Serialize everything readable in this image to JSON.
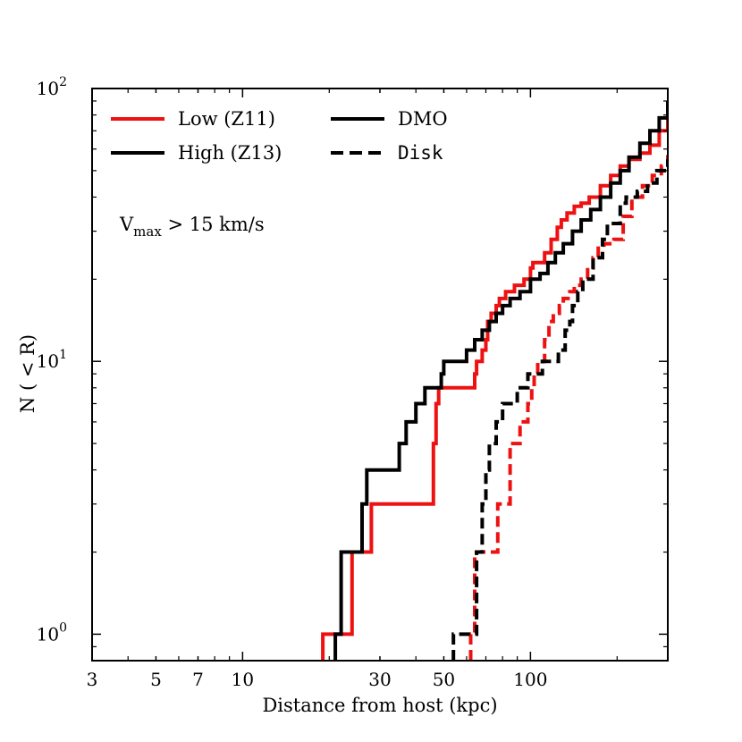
{
  "chart_data": {
    "type": "line",
    "step": true,
    "xscale": "log",
    "yscale": "log",
    "xlim": [
      3,
      300
    ],
    "ylim": [
      0.8,
      100
    ],
    "xlabel": "Distance from host (kpc)",
    "ylabel": "N ( < R)",
    "xticks": [
      {
        "value": 3,
        "label": "3"
      },
      {
        "value": 5,
        "label": "5"
      },
      {
        "value": 7,
        "label": "7"
      },
      {
        "value": 10,
        "label": "10"
      },
      {
        "value": 30,
        "label": "30"
      },
      {
        "value": 50,
        "label": "50"
      },
      {
        "value": 100,
        "label": "100"
      }
    ],
    "yticks": [
      {
        "value": 1,
        "base": "10",
        "exp": "0"
      },
      {
        "value": 10,
        "base": "10",
        "exp": "1"
      },
      {
        "value": 100,
        "base": "10",
        "exp": "2"
      }
    ],
    "annotation": {
      "main": "V",
      "sub": "max",
      "rest": " > 15 km/s"
    },
    "legend": [
      {
        "label": "Low (Z11)",
        "color": "#ee1111",
        "dash": "solid",
        "mono": false
      },
      {
        "label": "High (Z13)",
        "color": "#000000",
        "dash": "solid",
        "mono": false
      },
      {
        "label": "DMO",
        "color": "#000000",
        "dash": "solid",
        "mono": false
      },
      {
        "label": "Disk",
        "color": "#000000",
        "dash": "dashed",
        "mono": true
      }
    ],
    "series": [
      {
        "name": "Low (Z11) DMO",
        "color": "#ee1111",
        "dash": "solid",
        "points": [
          [
            19,
            1
          ],
          [
            24,
            2
          ],
          [
            28,
            3
          ],
          [
            46,
            5
          ],
          [
            47,
            7
          ],
          [
            48,
            8
          ],
          [
            64,
            9
          ],
          [
            65,
            10
          ],
          [
            68,
            11
          ],
          [
            70,
            12
          ],
          [
            71,
            14
          ],
          [
            73,
            15
          ],
          [
            76,
            16
          ],
          [
            78,
            17
          ],
          [
            82,
            18
          ],
          [
            88,
            19
          ],
          [
            95,
            20
          ],
          [
            100,
            22
          ],
          [
            102,
            23
          ],
          [
            112,
            25
          ],
          [
            118,
            28
          ],
          [
            124,
            31
          ],
          [
            128,
            33
          ],
          [
            134,
            35
          ],
          [
            142,
            37
          ],
          [
            150,
            38
          ],
          [
            160,
            40
          ],
          [
            175,
            44
          ],
          [
            190,
            48
          ],
          [
            205,
            52
          ],
          [
            220,
            55
          ],
          [
            240,
            58
          ],
          [
            260,
            62
          ],
          [
            280,
            70
          ],
          [
            300,
            85
          ]
        ]
      },
      {
        "name": "High (Z13) DMO",
        "color": "#000000",
        "dash": "solid",
        "points": [
          [
            21,
            1
          ],
          [
            22,
            2
          ],
          [
            26,
            3
          ],
          [
            27,
            4
          ],
          [
            35,
            5
          ],
          [
            37,
            6
          ],
          [
            40,
            7
          ],
          [
            43,
            8
          ],
          [
            49,
            9
          ],
          [
            50,
            10
          ],
          [
            60,
            11
          ],
          [
            64,
            12
          ],
          [
            68,
            13
          ],
          [
            72,
            14
          ],
          [
            76,
            15
          ],
          [
            80,
            16
          ],
          [
            85,
            17
          ],
          [
            92,
            18
          ],
          [
            100,
            20
          ],
          [
            108,
            21
          ],
          [
            115,
            23
          ],
          [
            122,
            25
          ],
          [
            130,
            27
          ],
          [
            140,
            30
          ],
          [
            150,
            33
          ],
          [
            162,
            36
          ],
          [
            175,
            40
          ],
          [
            190,
            45
          ],
          [
            205,
            50
          ],
          [
            220,
            56
          ],
          [
            240,
            63
          ],
          [
            260,
            70
          ],
          [
            280,
            78
          ],
          [
            300,
            90
          ]
        ]
      },
      {
        "name": "Low (Z11) Disk",
        "color": "#ee1111",
        "dash": "dashed",
        "points": [
          [
            62,
            1
          ],
          [
            64,
            2
          ],
          [
            77,
            3
          ],
          [
            85,
            5
          ],
          [
            92,
            6
          ],
          [
            98,
            7
          ],
          [
            101,
            8
          ],
          [
            103,
            9
          ],
          [
            106,
            10
          ],
          [
            112,
            12
          ],
          [
            116,
            14
          ],
          [
            120,
            15
          ],
          [
            126,
            16
          ],
          [
            130,
            17
          ],
          [
            137,
            18
          ],
          [
            142,
            19
          ],
          [
            150,
            20
          ],
          [
            158,
            22
          ],
          [
            165,
            24
          ],
          [
            172,
            26
          ],
          [
            180,
            27
          ],
          [
            195,
            28
          ],
          [
            210,
            34
          ],
          [
            225,
            40
          ],
          [
            245,
            44
          ],
          [
            265,
            48
          ],
          [
            285,
            52
          ],
          [
            300,
            58
          ]
        ]
      },
      {
        "name": "High (Z13) Disk",
        "color": "#000000",
        "dash": "dashed",
        "points": [
          [
            54,
            1
          ],
          [
            65,
            2
          ],
          [
            68,
            3
          ],
          [
            70,
            4
          ],
          [
            72,
            5
          ],
          [
            76,
            6
          ],
          [
            80,
            7
          ],
          [
            90,
            8
          ],
          [
            98,
            9
          ],
          [
            110,
            10
          ],
          [
            125,
            11
          ],
          [
            132,
            13
          ],
          [
            137,
            14
          ],
          [
            140,
            16
          ],
          [
            146,
            18
          ],
          [
            152,
            20
          ],
          [
            165,
            24
          ],
          [
            178,
            28
          ],
          [
            185,
            32
          ],
          [
            205,
            38
          ],
          [
            215,
            40
          ],
          [
            235,
            42
          ],
          [
            255,
            45
          ],
          [
            275,
            50
          ],
          [
            300,
            55
          ]
        ]
      }
    ]
  }
}
